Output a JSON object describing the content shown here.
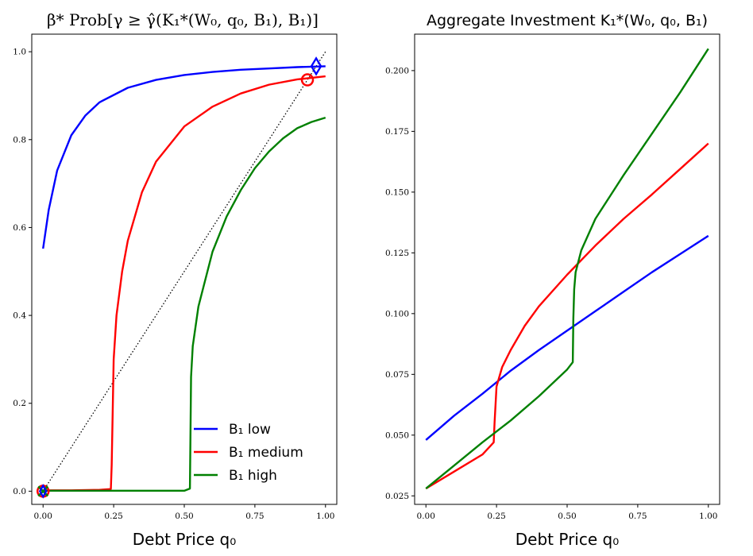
{
  "colors": {
    "low": "#0000ff",
    "medium": "#ff0000",
    "high": "#008000",
    "diagonal": "#000000"
  },
  "chart_data": [
    {
      "type": "line",
      "title": "β* Prob[γ ≥ γ̂(K₁*(W₀, q₀, B₁), B₁)]",
      "xlabel": "Debt Price q₀",
      "ylabel": "",
      "xlim": [
        -0.04,
        1.04
      ],
      "ylim": [
        -0.03,
        1.04
      ],
      "xticks": [
        "0.00",
        "0.25",
        "0.50",
        "0.75",
        "1.00"
      ],
      "yticks": [
        "0.0",
        "0.2",
        "0.4",
        "0.6",
        "0.8",
        "1.0"
      ],
      "legend": "lower-right",
      "series": [
        {
          "name": "B₁ low",
          "color_key": "low",
          "x": [
            0.0,
            0.02,
            0.05,
            0.1,
            0.15,
            0.2,
            0.3,
            0.4,
            0.5,
            0.6,
            0.7,
            0.8,
            0.9,
            1.0
          ],
          "y": [
            0.552,
            0.64,
            0.73,
            0.81,
            0.855,
            0.885,
            0.918,
            0.936,
            0.947,
            0.954,
            0.959,
            0.962,
            0.965,
            0.967
          ]
        },
        {
          "name": "B₁ medium",
          "color_key": "medium",
          "x": [
            0.0,
            0.1,
            0.2,
            0.24,
            0.243,
            0.25,
            0.26,
            0.28,
            0.3,
            0.35,
            0.4,
            0.5,
            0.6,
            0.7,
            0.8,
            0.9,
            1.0
          ],
          "y": [
            0.002,
            0.002,
            0.003,
            0.005,
            0.06,
            0.3,
            0.4,
            0.5,
            0.57,
            0.68,
            0.75,
            0.83,
            0.875,
            0.905,
            0.925,
            0.937,
            0.944
          ]
        },
        {
          "name": "B₁ high",
          "color_key": "high",
          "x": [
            0.0,
            0.2,
            0.4,
            0.5,
            0.52,
            0.524,
            0.53,
            0.55,
            0.6,
            0.65,
            0.7,
            0.75,
            0.8,
            0.85,
            0.9,
            0.95,
            1.0
          ],
          "y": [
            0.001,
            0.001,
            0.001,
            0.001,
            0.006,
            0.26,
            0.33,
            0.42,
            0.545,
            0.625,
            0.685,
            0.735,
            0.773,
            0.803,
            0.826,
            0.84,
            0.85
          ]
        }
      ],
      "diagonal": {
        "x": [
          0.0,
          1.0
        ],
        "y": [
          0.0,
          1.0
        ]
      },
      "markers": [
        {
          "series_key": "low",
          "shape": "diamond",
          "x": 0.967,
          "y": 0.967
        },
        {
          "series_key": "medium",
          "shape": "circle",
          "x": 0.936,
          "y": 0.936
        },
        {
          "series_key": "medium",
          "shape": "circle",
          "x": 0.0,
          "y": 0.0
        },
        {
          "series_key": "high",
          "shape": "x",
          "x": 0.0,
          "y": 0.0
        },
        {
          "series_key": "low",
          "shape": "diamond-small",
          "x": 0.0,
          "y": 0.0
        }
      ]
    },
    {
      "type": "line",
      "title": "Aggregate Investment K₁*(W₀, q₀, B₁)",
      "xlabel": "Debt Price q₀",
      "ylabel": "",
      "xlim": [
        -0.04,
        1.04
      ],
      "ylim": [
        0.0215,
        0.215
      ],
      "xticks": [
        "0.00",
        "0.25",
        "0.50",
        "0.75",
        "1.00"
      ],
      "yticks": [
        "0.025",
        "0.050",
        "0.075",
        "0.100",
        "0.125",
        "0.150",
        "0.175",
        "0.200"
      ],
      "series": [
        {
          "name": "B₁ low",
          "color_key": "low",
          "x": [
            0.0,
            0.1,
            0.2,
            0.3,
            0.4,
            0.5,
            0.6,
            0.7,
            0.8,
            0.9,
            1.0
          ],
          "y": [
            0.048,
            0.058,
            0.067,
            0.0765,
            0.085,
            0.093,
            0.101,
            0.109,
            0.117,
            0.1245,
            0.132
          ]
        },
        {
          "name": "B₁ medium",
          "color_key": "medium",
          "x": [
            0.0,
            0.1,
            0.2,
            0.24,
            0.243,
            0.25,
            0.27,
            0.3,
            0.35,
            0.4,
            0.5,
            0.6,
            0.7,
            0.8,
            0.9,
            1.0
          ],
          "y": [
            0.028,
            0.035,
            0.042,
            0.047,
            0.055,
            0.07,
            0.078,
            0.085,
            0.095,
            0.103,
            0.116,
            0.128,
            0.139,
            0.149,
            0.1595,
            0.17
          ]
        },
        {
          "name": "B₁ high",
          "color_key": "high",
          "x": [
            0.0,
            0.1,
            0.2,
            0.3,
            0.4,
            0.5,
            0.52,
            0.522,
            0.525,
            0.53,
            0.55,
            0.6,
            0.65,
            0.7,
            0.8,
            0.9,
            1.0
          ],
          "y": [
            0.028,
            0.0375,
            0.047,
            0.056,
            0.066,
            0.077,
            0.08,
            0.098,
            0.11,
            0.117,
            0.126,
            0.139,
            0.148,
            0.157,
            0.174,
            0.191,
            0.209
          ]
        }
      ]
    }
  ]
}
